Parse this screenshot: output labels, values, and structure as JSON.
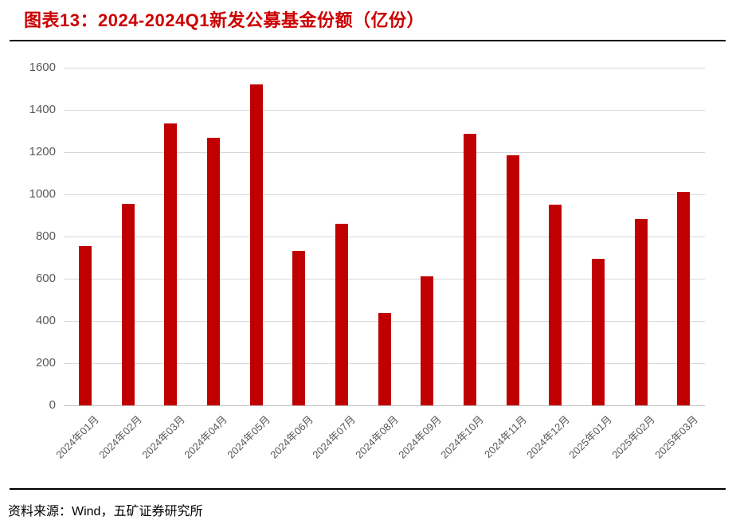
{
  "header": {
    "title": "图表13：2024-2024Q1新发公募基金份额（亿份）"
  },
  "footer": {
    "source": "资料来源：Wind，五矿证券研究所"
  },
  "colors": {
    "title": "#CC0000",
    "bar": "#C00000",
    "gridline": "#D9D9D9",
    "axis_label": "#595959",
    "rule": "#000000",
    "background": "#FFFFFF"
  },
  "chart_data": {
    "type": "bar",
    "title": "图表13：2024-2024Q1新发公募基金份额（亿份）",
    "xlabel": "",
    "ylabel": "",
    "categories": [
      "2024年01月",
      "2024年02月",
      "2024年03月",
      "2024年04月",
      "2024年05月",
      "2024年06月",
      "2024年07月",
      "2024年08月",
      "2024年09月",
      "2024年10月",
      "2024年11月",
      "2024年12月",
      "2025年01月",
      "2025年02月",
      "2025年03月"
    ],
    "values": [
      753,
      955,
      1335,
      1268,
      1520,
      731,
      860,
      437,
      612,
      1286,
      1184,
      951,
      693,
      882,
      1010
    ],
    "ylim": [
      0,
      1600
    ],
    "ytick_interval": 200,
    "ytick_labels": [
      "0",
      "200",
      "400",
      "600",
      "800",
      "1000",
      "1200",
      "1400",
      "1600"
    ],
    "grid": true,
    "legend": "none",
    "bar_color": "#C00000"
  }
}
